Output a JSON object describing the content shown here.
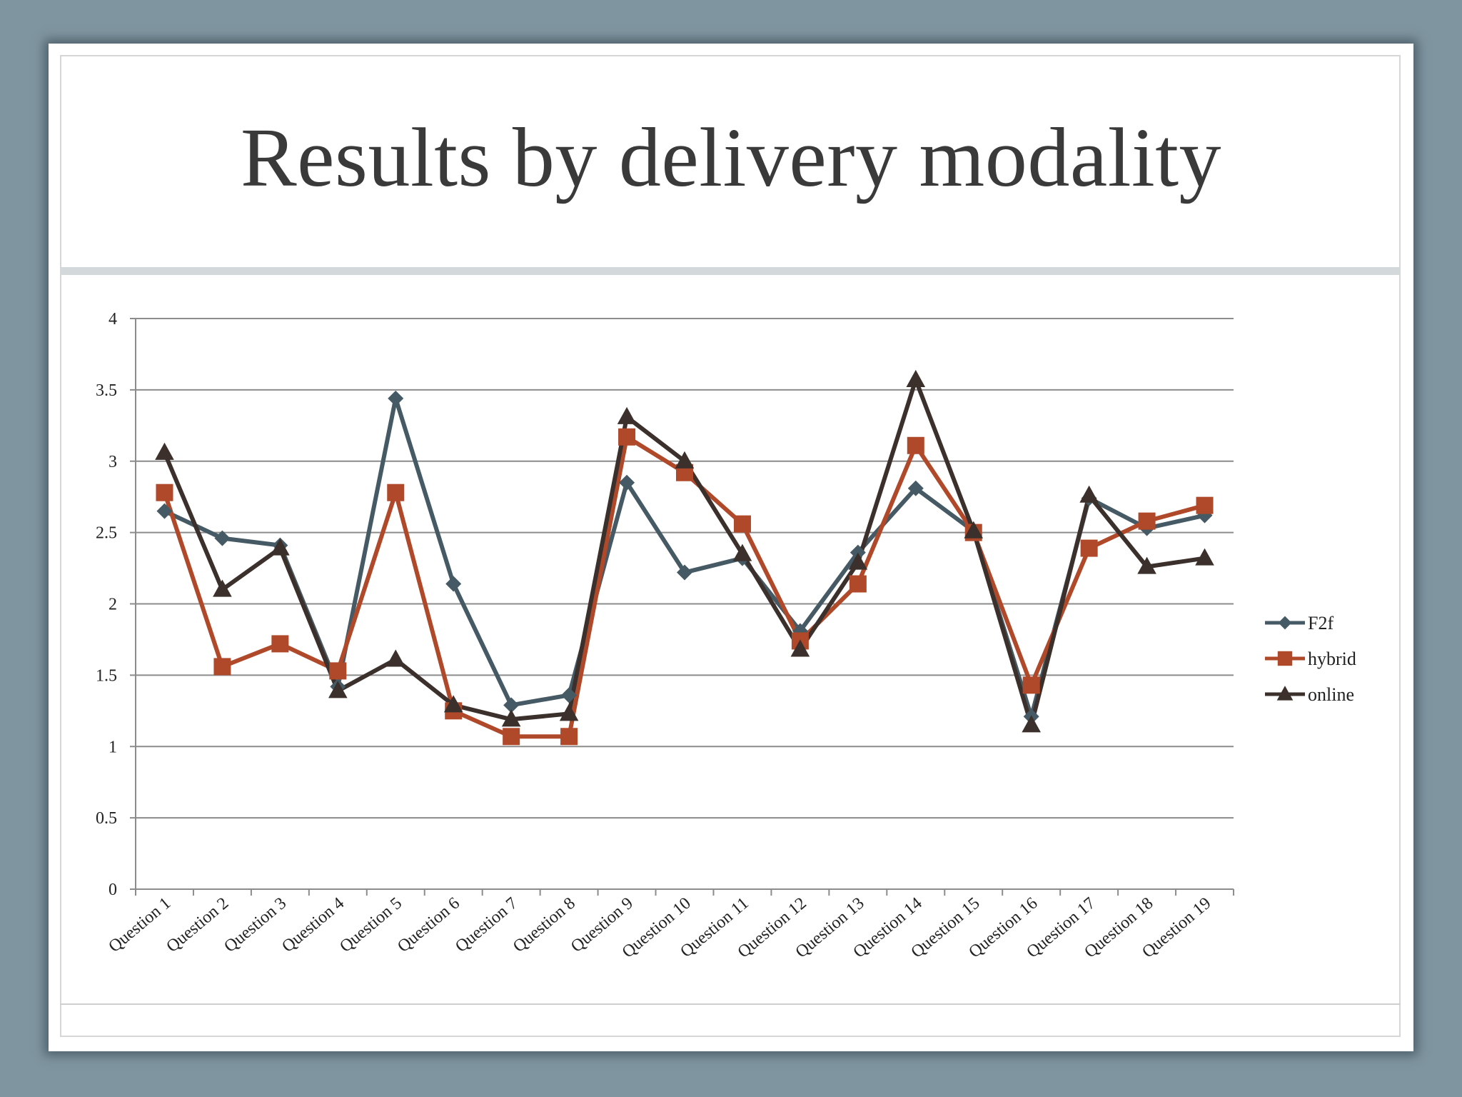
{
  "slide": {
    "title": "Results by delivery modality"
  },
  "chart_data": {
    "type": "line",
    "title": "",
    "xlabel": "",
    "ylabel": "",
    "ylim": [
      0,
      4
    ],
    "yticks": [
      0,
      0.5,
      1,
      1.5,
      2,
      2.5,
      3,
      3.5,
      4
    ],
    "ytick_labels": [
      "0",
      "0.5",
      "1",
      "1.5",
      "2",
      "2.5",
      "3",
      "3.5",
      "4"
    ],
    "grid": "horizontal",
    "legend_position": "right",
    "categories": [
      "Question 1",
      "Question 2",
      "Question 3",
      "Question 4",
      "Question 5",
      "Question 6",
      "Question 7",
      "Question 8",
      "Question 9",
      "Question 10",
      "Question 11",
      "Question 12",
      "Question 13",
      "Question 14",
      "Question 15",
      "Question 16",
      "Question 17",
      "Question 18",
      "Question 19"
    ],
    "series": [
      {
        "name": "F2f",
        "color": "#455a64",
        "marker": "diamond",
        "values": [
          2.65,
          2.46,
          2.41,
          1.42,
          3.44,
          2.14,
          1.29,
          1.36,
          2.85,
          2.22,
          2.32,
          1.81,
          2.36,
          2.81,
          2.51,
          1.21,
          2.74,
          2.53,
          2.62
        ]
      },
      {
        "name": "hybrid",
        "color": "#b0482a",
        "marker": "square",
        "values": [
          2.78,
          1.56,
          1.72,
          1.53,
          2.78,
          1.25,
          1.07,
          1.07,
          3.17,
          2.92,
          2.56,
          1.74,
          2.14,
          3.11,
          2.5,
          1.43,
          2.39,
          2.58,
          2.69
        ]
      },
      {
        "name": "online",
        "color": "#3b302b",
        "marker": "triangle",
        "values": [
          3.06,
          2.1,
          2.39,
          1.39,
          1.61,
          1.29,
          1.19,
          1.23,
          3.31,
          3.0,
          2.35,
          1.68,
          2.29,
          3.57,
          2.51,
          1.15,
          2.76,
          2.26,
          2.32
        ]
      }
    ]
  }
}
